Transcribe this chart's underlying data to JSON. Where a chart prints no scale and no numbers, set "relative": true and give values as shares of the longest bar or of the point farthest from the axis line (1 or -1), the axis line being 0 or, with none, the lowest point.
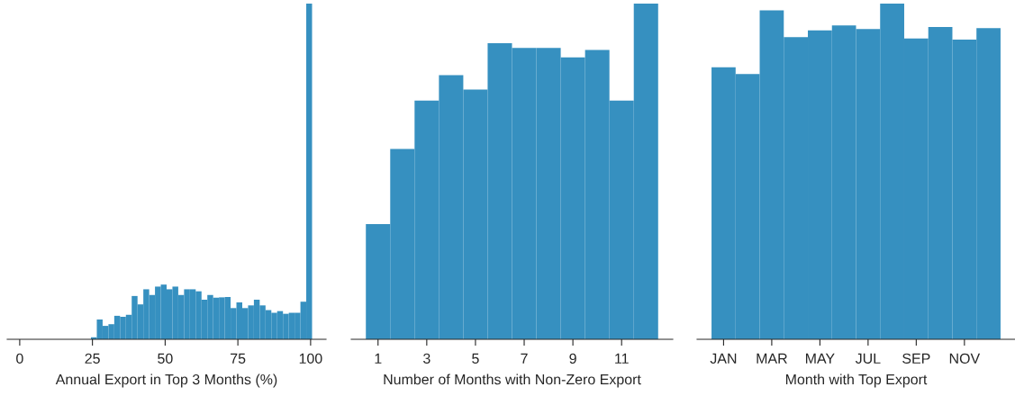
{
  "chart_data": [
    {
      "type": "bar",
      "xlabel": "Annual Export in Top 3 Months (%)",
      "relative": true,
      "color": "#3690c0",
      "x": [
        25.5,
        27.5,
        29.5,
        31.5,
        33.5,
        35.5,
        37.5,
        39.5,
        41.5,
        43.5,
        45.5,
        47.5,
        49.5,
        51.5,
        53.5,
        55.5,
        57.5,
        59.5,
        61.5,
        63.5,
        65.5,
        67.5,
        69.5,
        71.5,
        73.5,
        75.5,
        77.5,
        79.5,
        81.5,
        83.5,
        85.5,
        87.5,
        89.5,
        91.5,
        93.5,
        95.5,
        97.5,
        99.5
      ],
      "values": [
        0.006,
        0.059,
        0.04,
        0.045,
        0.07,
        0.067,
        0.073,
        0.129,
        0.104,
        0.149,
        0.132,
        0.157,
        0.163,
        0.149,
        0.157,
        0.132,
        0.149,
        0.149,
        0.143,
        0.118,
        0.132,
        0.124,
        0.125,
        0.126,
        0.093,
        0.11,
        0.093,
        0.101,
        0.118,
        0.101,
        0.087,
        0.079,
        0.084,
        0.076,
        0.079,
        0.079,
        0.112,
        1
      ],
      "xlim": [
        -4.3,
        105.3
      ],
      "xticks": [
        0,
        25,
        50,
        75,
        100
      ]
    },
    {
      "type": "bar",
      "xlabel": "Number of Months with Non-Zero Export",
      "relative": true,
      "color": "#3690c0",
      "categories": [
        "1",
        null,
        "3",
        null,
        "5",
        null,
        "7",
        null,
        "9",
        null,
        "11",
        null
      ],
      "values": [
        0.343,
        0.567,
        0.711,
        0.787,
        0.744,
        0.882,
        0.868,
        0.868,
        0.84,
        0.862,
        0.711,
        1
      ]
    },
    {
      "type": "bar",
      "xlabel": "Month with Top Export",
      "relative": true,
      "color": "#3690c0",
      "categories": [
        "JAN",
        null,
        "MAR",
        null,
        "MAY",
        null,
        "JUL",
        null,
        "SEP",
        null,
        "NOV",
        null
      ],
      "values": [
        0.81,
        0.79,
        0.98,
        0.9,
        0.92,
        0.935,
        0.924,
        1,
        0.896,
        0.93,
        0.893,
        0.927
      ]
    }
  ]
}
